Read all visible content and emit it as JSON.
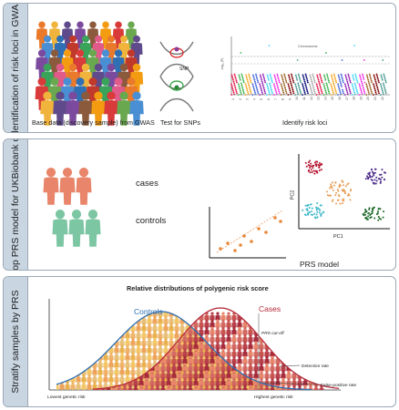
{
  "panel1": {
    "label": "Identification of risk loci in GWAS",
    "crowd_caption": "Base data (discovery sample) from GWAS",
    "snp_caption": "Test for SNPs",
    "snp_tag": "SNP",
    "loci_caption": "Identify risk loci",
    "manhattan_ylabel": "-log₁₀(P)",
    "manhattan_xlabel": "Chromosome",
    "chromosomes": [
      "1",
      "2",
      "3",
      "4",
      "5",
      "6",
      "7",
      "8",
      "9",
      "10",
      "11",
      "12",
      "13",
      "14",
      "15",
      "16",
      "17",
      "18",
      "19",
      "20",
      "21",
      "22"
    ]
  },
  "panel2": {
    "label": "Develop PRS model for UKBiobank cohort",
    "cases": "cases",
    "controls": "controls",
    "model_caption": "PRS model",
    "pc1": "PC1",
    "pc2": "PC2"
  },
  "panel3": {
    "label": "Stratify samples by PRS",
    "title": "Relative distributions of polygenic risk score",
    "controls": "Controls",
    "cases": "Cases",
    "cutoff": "PRS cut-off",
    "detection": "Detection rate",
    "false_positive": "False-positive rate",
    "lowest": "Lowest genetic risk",
    "highest": "Highest genetic risk"
  },
  "colors": {
    "controls_curve": "#2f6fb3",
    "cases_curve": "#b52b3a",
    "case_person": "#e8856a",
    "control_person": "#7cc6a3",
    "panel_label_bg": "#c9d6e2"
  }
}
